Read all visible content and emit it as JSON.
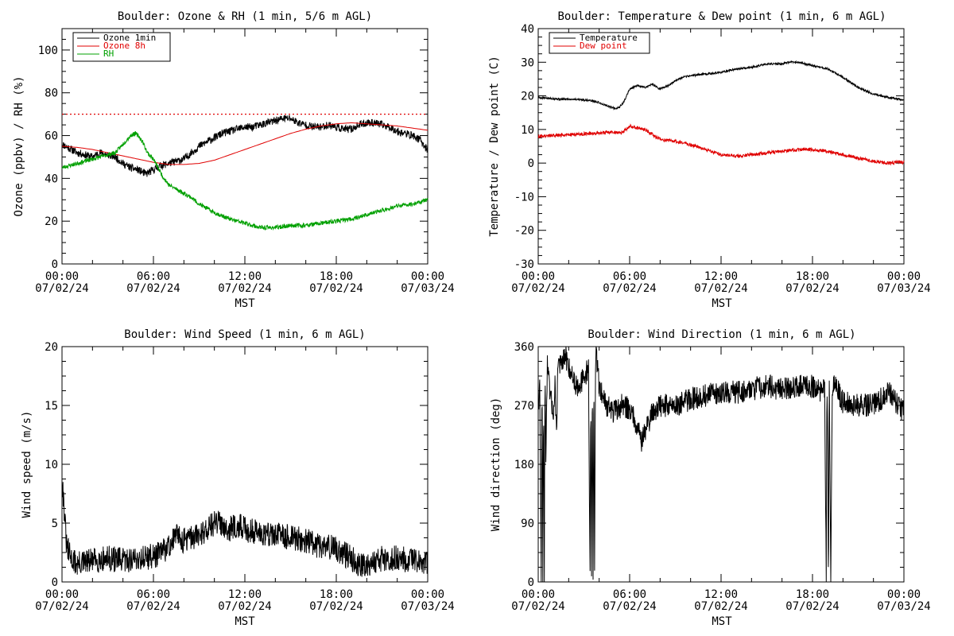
{
  "figure": {
    "background": "#ffffff"
  },
  "chart_data": [
    {
      "id": "ozone_rh",
      "type": "line",
      "title": "Boulder: Ozone & RH (1 min, 5/6 m AGL)",
      "xlabel": "MST",
      "ylabel": "Ozone (ppbv) / RH (%)",
      "xlim": [
        0,
        24
      ],
      "ylim": [
        0,
        110
      ],
      "x_ticks": [
        {
          "v": 0,
          "time": "00:00",
          "date": "07/02/24"
        },
        {
          "v": 6,
          "time": "06:00",
          "date": "07/02/24"
        },
        {
          "v": 12,
          "time": "12:00",
          "date": "07/02/24"
        },
        {
          "v": 18,
          "time": "18:00",
          "date": "07/02/24"
        },
        {
          "v": 24,
          "time": "00:00",
          "date": "07/03/24"
        }
      ],
      "y_ticks": [
        0,
        20,
        40,
        60,
        80,
        100
      ],
      "legend": "top-left",
      "hline": {
        "y": 70,
        "color": "#e00000",
        "style": "dotted"
      },
      "series": [
        {
          "name": "Ozone 1min",
          "color": "#000000",
          "noise": 1.8,
          "seed": 11,
          "x": [
            0,
            0.5,
            1,
            1.5,
            2,
            2.5,
            3,
            3.5,
            4,
            4.5,
            5,
            5.5,
            6,
            6.5,
            7,
            7.5,
            8,
            8.5,
            9,
            9.5,
            10,
            10.5,
            11,
            11.5,
            12,
            12.5,
            13,
            13.5,
            14,
            14.5,
            15,
            15.5,
            16,
            16.5,
            17,
            17.5,
            18,
            18.5,
            19,
            19.5,
            20,
            20.5,
            21,
            21.5,
            22,
            22.5,
            23,
            23.5,
            24
          ],
          "y": [
            56,
            54,
            52,
            51,
            50,
            52,
            51,
            50,
            47,
            45,
            44,
            42,
            44,
            46,
            47,
            48,
            49,
            52,
            55,
            57,
            59,
            61,
            62,
            63,
            64,
            64,
            65,
            66,
            67,
            68,
            68,
            66,
            65,
            64,
            64,
            65,
            64,
            63,
            63,
            65,
            66,
            66,
            65,
            64,
            62,
            61,
            60,
            58,
            53
          ]
        },
        {
          "name": "Ozone 8h",
          "color": "#e00000",
          "noise": 0,
          "seed": 0,
          "x": [
            0,
            1,
            2,
            3,
            4,
            5,
            6,
            7,
            8,
            9,
            10,
            11,
            12,
            13,
            14,
            15,
            16,
            17,
            18,
            19,
            20,
            21,
            22,
            23,
            24
          ],
          "y": [
            55,
            54.5,
            53.5,
            52,
            50.5,
            49,
            47.5,
            46.5,
            46.5,
            47,
            48.5,
            51,
            53.5,
            56,
            58.5,
            61,
            63,
            64.5,
            65.5,
            66,
            65.5,
            65,
            64.5,
            63.5,
            62.5
          ]
        },
        {
          "name": "RH",
          "color": "#00a000",
          "noise": 1.0,
          "seed": 23,
          "x": [
            0,
            0.5,
            1,
            1.5,
            2,
            2.5,
            3,
            3.5,
            4,
            4.5,
            4.8,
            5,
            5.3,
            5.6,
            6,
            6.3,
            6.6,
            7,
            7.5,
            8,
            8.5,
            9,
            10,
            11,
            12,
            13,
            14,
            15,
            16,
            17,
            18,
            19,
            20,
            21,
            22,
            23,
            24
          ],
          "y": [
            45,
            46,
            47,
            48,
            49,
            50,
            51,
            52,
            56,
            60,
            61,
            60,
            57,
            52,
            49,
            45,
            41,
            37,
            35,
            33,
            31,
            28,
            24,
            21,
            19,
            17,
            17,
            18,
            18,
            19,
            20,
            21,
            23,
            25,
            27,
            28,
            30
          ]
        }
      ]
    },
    {
      "id": "temp_dew",
      "type": "line",
      "title": "Boulder: Temperature & Dew point (1 min, 6 m AGL)",
      "xlabel": "MST",
      "ylabel": "Temperature / Dew point (C)",
      "xlim": [
        0,
        24
      ],
      "ylim": [
        -30,
        40
      ],
      "x_ticks": [
        {
          "v": 0,
          "time": "00:00",
          "date": "07/02/24"
        },
        {
          "v": 6,
          "time": "06:00",
          "date": "07/02/24"
        },
        {
          "v": 12,
          "time": "12:00",
          "date": "07/02/24"
        },
        {
          "v": 18,
          "time": "18:00",
          "date": "07/02/24"
        },
        {
          "v": 24,
          "time": "00:00",
          "date": "07/03/24"
        }
      ],
      "y_ticks": [
        -30,
        -20,
        -10,
        0,
        10,
        20,
        30,
        40
      ],
      "legend": "top-left",
      "series": [
        {
          "name": "Temperature",
          "color": "#000000",
          "noise": 0.3,
          "seed": 5,
          "x": [
            0,
            0.5,
            1,
            1.5,
            2,
            2.5,
            3,
            3.5,
            4,
            4.5,
            5,
            5.3,
            5.6,
            6,
            6.5,
            7,
            7.5,
            8,
            8.5,
            9,
            9.5,
            10,
            11,
            12,
            13,
            14,
            15,
            16,
            16.5,
            17,
            17.5,
            18,
            19,
            20,
            21,
            22,
            23,
            24
          ],
          "y": [
            19.5,
            19.3,
            19.2,
            19,
            19,
            19,
            18.8,
            18.6,
            18,
            17,
            16.3,
            16.5,
            18,
            22,
            23,
            22.5,
            23.5,
            22,
            23,
            24.5,
            25.5,
            26,
            26.5,
            27,
            28,
            28.5,
            29.5,
            29.5,
            30,
            30,
            29.5,
            29,
            28,
            25.5,
            22.5,
            20.5,
            19.5,
            18.8
          ]
        },
        {
          "name": "Dew point",
          "color": "#e00000",
          "noise": 0.5,
          "seed": 9,
          "x": [
            0,
            1,
            2,
            3,
            4,
            5,
            5.5,
            6,
            6.5,
            7,
            7.5,
            8,
            9,
            10,
            11,
            12,
            13,
            14,
            15,
            16,
            17,
            18,
            19,
            20,
            21,
            22,
            23,
            24
          ],
          "y": [
            8,
            8.2,
            8.5,
            8.7,
            9,
            9.2,
            9,
            11,
            10.5,
            10,
            8.5,
            7,
            6.5,
            5.5,
            4,
            2.5,
            2,
            2.5,
            3,
            3.5,
            4,
            4,
            3.5,
            2.5,
            1.5,
            0.5,
            0,
            0.3
          ]
        }
      ]
    },
    {
      "id": "wind_speed",
      "type": "line",
      "title": "Boulder: Wind Speed (1 min, 6 m AGL)",
      "xlabel": "MST",
      "ylabel": "Wind speed (m/s)",
      "xlim": [
        0,
        24
      ],
      "ylim": [
        0,
        20
      ],
      "x_ticks": [
        {
          "v": 0,
          "time": "00:00",
          "date": "07/02/24"
        },
        {
          "v": 6,
          "time": "06:00",
          "date": "07/02/24"
        },
        {
          "v": 12,
          "time": "12:00",
          "date": "07/02/24"
        },
        {
          "v": 18,
          "time": "18:00",
          "date": "07/02/24"
        },
        {
          "v": 24,
          "time": "00:00",
          "date": "07/03/24"
        }
      ],
      "y_ticks": [
        0,
        5,
        10,
        15,
        20
      ],
      "series": [
        {
          "name": "",
          "color": "#000000",
          "noise": 1.1,
          "seed": 31,
          "floor": 0.1,
          "x": [
            0,
            0.1,
            0.3,
            0.6,
            1,
            2,
            3,
            4,
            5,
            6,
            6.5,
            7,
            7.5,
            8,
            9,
            9.5,
            10,
            10.5,
            11,
            11.5,
            12,
            13,
            14,
            15,
            16,
            17,
            17.5,
            18,
            19,
            19.5,
            20,
            21,
            22,
            23,
            24
          ],
          "y": [
            9,
            7,
            3,
            2,
            1.5,
            1.8,
            2,
            1.8,
            2,
            2.2,
            2.5,
            3,
            4,
            3.5,
            4,
            4.5,
            5,
            5,
            4.5,
            4.8,
            4.5,
            4.2,
            4,
            3.8,
            3.5,
            3,
            3,
            2.8,
            2,
            1.5,
            1.5,
            2,
            2,
            1.8,
            1.5
          ]
        }
      ]
    },
    {
      "id": "wind_dir",
      "type": "line",
      "title": "Boulder: Wind Direction (1 min, 6 m AGL)",
      "xlabel": "MST",
      "ylabel": "Wind direction (deg)",
      "xlim": [
        0,
        24
      ],
      "ylim": [
        0,
        360
      ],
      "x_ticks": [
        {
          "v": 0,
          "time": "00:00",
          "date": "07/02/24"
        },
        {
          "v": 6,
          "time": "06:00",
          "date": "07/02/24"
        },
        {
          "v": 12,
          "time": "12:00",
          "date": "07/02/24"
        },
        {
          "v": 18,
          "time": "18:00",
          "date": "07/02/24"
        },
        {
          "v": 24,
          "time": "00:00",
          "date": "07/03/24"
        }
      ],
      "y_ticks": [
        0,
        90,
        180,
        270,
        360
      ],
      "series": [
        {
          "name": "",
          "color": "#000000",
          "noise": 18,
          "seed": 47,
          "ymin": 0,
          "ymax": 360,
          "x": [
            0,
            0.1,
            0.2,
            0.25,
            0.3,
            0.35,
            0.4,
            0.45,
            0.5,
            0.6,
            0.8,
            1,
            1.1,
            1.2,
            1.3,
            1.5,
            1.8,
            2,
            2.5,
            3,
            3.3,
            3.4,
            3.45,
            3.5,
            3.55,
            3.6,
            3.65,
            3.7,
            3.75,
            3.8,
            4,
            4.5,
            5,
            5.5,
            6,
            6.5,
            6.8,
            7,
            7.5,
            8,
            9,
            10,
            11,
            12,
            13,
            14,
            15,
            16,
            17,
            18,
            18.5,
            18.8,
            18.9,
            18.95,
            19,
            19.05,
            19.1,
            19.2,
            19.3,
            19.5,
            20,
            21,
            22,
            23,
            24
          ],
          "y": [
            270,
            300,
            0,
            330,
            0,
            300,
            10,
            320,
            200,
            330,
            280,
            260,
            300,
            230,
            340,
            330,
            345,
            330,
            300,
            310,
            330,
            10,
            300,
            0,
            340,
            10,
            330,
            0,
            320,
            350,
            300,
            270,
            260,
            270,
            265,
            240,
            215,
            230,
            260,
            270,
            270,
            280,
            285,
            290,
            290,
            295,
            300,
            295,
            300,
            300,
            290,
            300,
            0,
            330,
            180,
            0,
            320,
            10,
            300,
            300,
            275,
            270,
            270,
            290,
            260
          ]
        }
      ]
    }
  ]
}
